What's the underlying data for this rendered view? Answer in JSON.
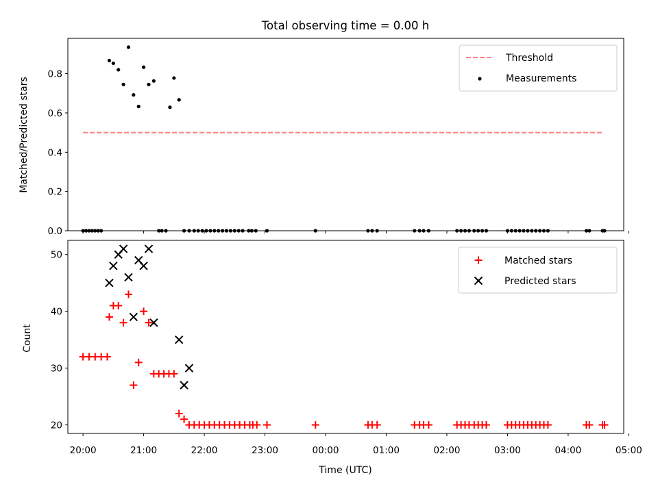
{
  "chart_data": [
    {
      "type": "scatter",
      "title": "Total observing time = 0.00 h",
      "ylabel": "Matched/Predicted stars",
      "xlabel": "",
      "ylim": [
        0,
        0.98
      ],
      "yticks": [
        "0.0",
        "0.2",
        "0.4",
        "0.6",
        "0.8"
      ],
      "xlim": [
        "19:45",
        "04:55"
      ],
      "legend_position": "top-right",
      "series": [
        {
          "name": "Threshold",
          "kind": "dashed-line",
          "color": "#ff7f7f",
          "x": [
            "20:00",
            "04:35"
          ],
          "y": [
            0.5,
            0.5
          ]
        },
        {
          "name": "Measurements",
          "kind": "points",
          "color": "#000000",
          "x": [
            "20:00",
            "20:03",
            "20:06",
            "20:09",
            "20:12",
            "20:15",
            "20:18",
            "20:26",
            "20:30",
            "20:35",
            "20:40",
            "20:45",
            "20:50",
            "20:55",
            "21:00",
            "21:05",
            "21:10",
            "21:15",
            "21:18",
            "21:22",
            "21:26",
            "21:30",
            "21:35",
            "21:40",
            "21:45",
            "21:50",
            "21:54",
            "21:58",
            "22:02",
            "22:06",
            "22:10",
            "22:14",
            "22:18",
            "22:22",
            "22:26",
            "22:30",
            "22:34",
            "22:38",
            "22:44",
            "22:47",
            "22:51",
            "23:02",
            "23:50",
            "00:42",
            "00:46",
            "00:51",
            "01:28",
            "01:33",
            "01:37",
            "01:42",
            "02:10",
            "02:14",
            "02:18",
            "02:22",
            "02:27",
            "02:31",
            "02:35",
            "02:39",
            "03:00",
            "03:04",
            "03:08",
            "03:12",
            "03:16",
            "03:20",
            "03:24",
            "03:28",
            "03:32",
            "03:36",
            "03:40",
            "04:18",
            "04:21",
            "04:34",
            "04:36"
          ],
          "y": [
            0,
            0,
            0,
            0,
            0,
            0,
            0,
            0.867,
            0.853,
            0.82,
            0.745,
            0.935,
            0.692,
            0.633,
            0.833,
            0.745,
            0.763,
            0,
            0,
            0,
            0.629,
            0.778,
            0.667,
            0,
            0,
            0,
            0,
            0,
            0,
            0,
            0,
            0,
            0,
            0,
            0,
            0,
            0,
            0,
            0,
            0,
            0,
            0,
            0,
            0,
            0,
            0,
            0,
            0,
            0,
            0,
            0,
            0,
            0,
            0,
            0,
            0,
            0,
            0,
            0,
            0,
            0,
            0,
            0,
            0,
            0,
            0,
            0,
            0,
            0,
            0,
            0,
            0,
            0
          ]
        }
      ]
    },
    {
      "type": "scatter",
      "title": "",
      "ylabel": "Count",
      "xlabel": "Time (UTC)",
      "ylim": [
        18.5,
        52.5
      ],
      "yticks": [
        "20",
        "30",
        "40",
        "50"
      ],
      "xticks": [
        "20:00",
        "21:00",
        "22:00",
        "23:00",
        "00:00",
        "01:00",
        "02:00",
        "03:00",
        "04:00",
        "05:00"
      ],
      "xlim": [
        "19:45",
        "04:55"
      ],
      "legend_position": "top-right",
      "series": [
        {
          "name": "Matched stars",
          "kind": "plus",
          "color": "#ff0000",
          "x": [
            "20:00",
            "20:06",
            "20:12",
            "20:18",
            "20:24",
            "20:26",
            "20:30",
            "20:35",
            "20:40",
            "20:45",
            "20:50",
            "20:55",
            "21:00",
            "21:05",
            "21:10",
            "21:15",
            "21:20",
            "21:25",
            "21:30",
            "21:35",
            "21:40",
            "21:45",
            "21:50",
            "21:55",
            "22:00",
            "22:05",
            "22:10",
            "22:15",
            "22:20",
            "22:25",
            "22:30",
            "22:35",
            "22:40",
            "22:45",
            "22:48",
            "22:52",
            "23:02",
            "23:50",
            "00:42",
            "00:46",
            "00:51",
            "01:28",
            "01:33",
            "01:37",
            "01:42",
            "02:10",
            "02:14",
            "02:18",
            "02:22",
            "02:27",
            "02:31",
            "02:35",
            "02:39",
            "03:00",
            "03:04",
            "03:08",
            "03:12",
            "03:16",
            "03:20",
            "03:24",
            "03:28",
            "03:32",
            "03:36",
            "03:40",
            "04:18",
            "04:21",
            "04:34",
            "04:36"
          ],
          "y": [
            32,
            32,
            32,
            32,
            32,
            39,
            41,
            41,
            38,
            43,
            27,
            31,
            40,
            38,
            29,
            29,
            29,
            29,
            29,
            22,
            21,
            20,
            20,
            20,
            20,
            20,
            20,
            20,
            20,
            20,
            20,
            20,
            20,
            20,
            20,
            20,
            20,
            20,
            20,
            20,
            20,
            20,
            20,
            20,
            20,
            20,
            20,
            20,
            20,
            20,
            20,
            20,
            20,
            20,
            20,
            20,
            20,
            20,
            20,
            20,
            20,
            20,
            20,
            20,
            20,
            20,
            20,
            20
          ]
        },
        {
          "name": "Predicted stars",
          "kind": "x",
          "color": "#000000",
          "x": [
            "20:26",
            "20:30",
            "20:35",
            "20:40",
            "20:45",
            "20:50",
            "20:55",
            "21:00",
            "21:05",
            "21:10",
            "21:35",
            "21:40",
            "21:45"
          ],
          "y": [
            45,
            48,
            50,
            51,
            46,
            39,
            49,
            48,
            51,
            38,
            35,
            27,
            30
          ]
        }
      ]
    }
  ]
}
